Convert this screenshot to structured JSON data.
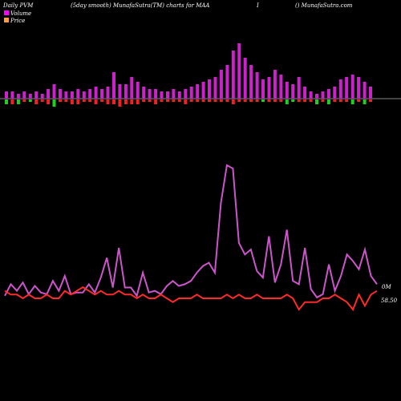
{
  "header": {
    "left": "Daily PVM",
    "center": "(5day smooth) MunafaSutra(TM) charts for MAA",
    "marker": "I",
    "right": "() MunafaSutra.com"
  },
  "legend": [
    {
      "label": "Volume",
      "color": "#ff00ff"
    },
    {
      "label": "Price",
      "color": "#ffa040"
    }
  ],
  "colors": {
    "background": "#000000",
    "volume_bar": "#cc22cc",
    "up_bar": "#22cc22",
    "down_bar": "#ee2222",
    "volume_line": "#cc55cc",
    "price_line": "#ff2a2a",
    "zero_line": "#888888"
  },
  "chart_data": {
    "type": "bar+line",
    "bars": {
      "volume": [
        3,
        3,
        2,
        3,
        2,
        3,
        2,
        4,
        6,
        4,
        3,
        3,
        4,
        3,
        4,
        5,
        4,
        5,
        11,
        6,
        6,
        9,
        7,
        5,
        4,
        4,
        3,
        3,
        4,
        3,
        4,
        5,
        6,
        7,
        8,
        9,
        12,
        14,
        20,
        23,
        17,
        14,
        11,
        8,
        9,
        12,
        10,
        7,
        6,
        9,
        5,
        3,
        2,
        3,
        4,
        5,
        8,
        9,
        10,
        9,
        7,
        5
      ],
      "change": [
        -2,
        -2,
        -2,
        -1,
        -1,
        -2,
        -1,
        -2,
        -3,
        -1,
        -1,
        -2,
        -2,
        -1,
        -1,
        -2,
        -1,
        -2,
        -2,
        -3,
        -2,
        -2,
        -2,
        -1,
        -1,
        -2,
        -1,
        -1,
        -1,
        -1,
        -2,
        -1,
        -1,
        -1,
        -1,
        -1,
        -1,
        -1,
        -2,
        -1,
        -1,
        -1,
        -1,
        -1,
        -1,
        -1,
        -1,
        -2,
        -1,
        -1,
        -1,
        -1,
        -2,
        -1,
        -2,
        -1,
        -1,
        -1,
        -2,
        -1,
        -2,
        -1
      ],
      "change_sign": [
        "u",
        "d",
        "u",
        "d",
        "u",
        "d",
        "d",
        "d",
        "u",
        "d",
        "d",
        "d",
        "d",
        "d",
        "d",
        "d",
        "d",
        "d",
        "d",
        "d",
        "d",
        "d",
        "d",
        "d",
        "d",
        "d",
        "d",
        "d",
        "d",
        "d",
        "d",
        "d",
        "d",
        "d",
        "d",
        "d",
        "d",
        "d",
        "d",
        "d",
        "d",
        "d",
        "d",
        "u",
        "d",
        "d",
        "d",
        "u",
        "u",
        "d",
        "d",
        "d",
        "u",
        "d",
        "u",
        "d",
        "d",
        "d",
        "u",
        "d",
        "u",
        "d"
      ]
    },
    "volume_line": [
      3,
      10,
      6,
      11,
      4,
      9,
      5,
      4,
      12,
      6,
      15,
      4,
      5,
      5,
      10,
      5,
      14,
      26,
      8,
      32,
      8,
      8,
      3,
      17,
      5,
      6,
      4,
      9,
      12,
      9,
      10,
      12,
      17,
      21,
      23,
      17,
      59,
      82,
      80,
      35,
      28,
      31,
      18,
      14,
      39,
      11,
      22,
      43,
      12,
      10,
      32,
      7,
      2,
      4,
      22,
      6,
      15,
      28,
      24,
      19,
      31,
      15,
      10
    ],
    "price_line": [
      5,
      4,
      4,
      3,
      4,
      3,
      3,
      4,
      3,
      3,
      5,
      4,
      5,
      6,
      5,
      4,
      5,
      4,
      4,
      5,
      4,
      4,
      3,
      4,
      3,
      3,
      4,
      3,
      2,
      3,
      3,
      3,
      4,
      3,
      3,
      3,
      3,
      4,
      3,
      4,
      3,
      3,
      4,
      3,
      3,
      3,
      3,
      4,
      3,
      0,
      2,
      2,
      2,
      3,
      3,
      4,
      3,
      2,
      0,
      4,
      1,
      4,
      5
    ],
    "volume_label": "0M",
    "price_label": "58.50"
  }
}
